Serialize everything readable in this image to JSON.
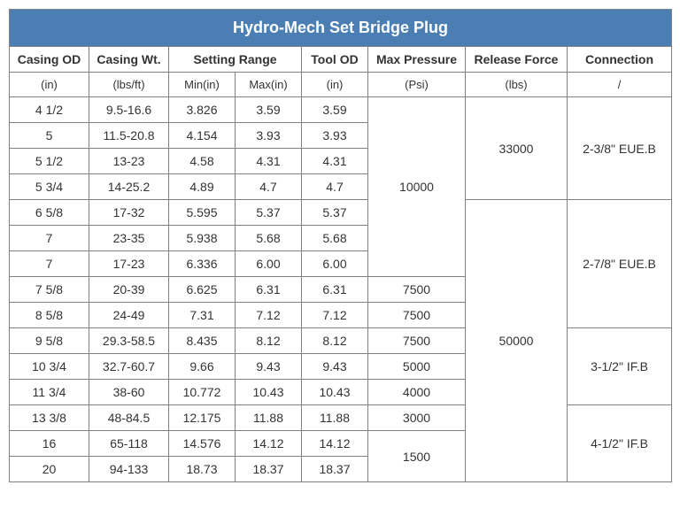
{
  "title": "Hydro-Mech Set Bridge Plug",
  "headers": {
    "casing_od": "Casing OD",
    "casing_wt": "Casing Wt.",
    "setting_range": "Setting Range",
    "tool_od": "Tool OD",
    "max_pressure": "Max Pressure",
    "release_force": "Release Force",
    "connection": "Connection"
  },
  "units": {
    "casing_od": "(in)",
    "casing_wt": "(lbs/ft)",
    "min": "Min(in)",
    "max": "Max(in)",
    "tool_od": "(in)",
    "max_pressure": "(Psi)",
    "release_force": "(lbs)",
    "connection": "/"
  },
  "rows": [
    {
      "od": "4 1/2",
      "wt": "9.5-16.6",
      "min": "3.826",
      "max": "3.59",
      "tool": "3.59"
    },
    {
      "od": "5",
      "wt": "11.5-20.8",
      "min": "4.154",
      "max": "3.93",
      "tool": "3.93"
    },
    {
      "od": "5 1/2",
      "wt": "13-23",
      "min": "4.58",
      "max": "4.31",
      "tool": "4.31"
    },
    {
      "od": "5 3/4",
      "wt": "14-25.2",
      "min": "4.89",
      "max": "4.7",
      "tool": "4.7"
    },
    {
      "od": "6 5/8",
      "wt": "17-32",
      "min": "5.595",
      "max": "5.37",
      "tool": "5.37"
    },
    {
      "od": "7",
      "wt": "23-35",
      "min": "5.938",
      "max": "5.68",
      "tool": "5.68"
    },
    {
      "od": "7",
      "wt": "17-23",
      "min": "6.336",
      "max": "6.00",
      "tool": "6.00"
    },
    {
      "od": "7 5/8",
      "wt": "20-39",
      "min": "6.625",
      "max": "6.31",
      "tool": "6.31"
    },
    {
      "od": "8 5/8",
      "wt": "24-49",
      "min": "7.31",
      "max": "7.12",
      "tool": "7.12"
    },
    {
      "od": "9 5/8",
      "wt": "29.3-58.5",
      "min": "8.435",
      "max": "8.12",
      "tool": "8.12"
    },
    {
      "od": "10 3/4",
      "wt": "32.7-60.7",
      "min": "9.66",
      "max": "9.43",
      "tool": "9.43"
    },
    {
      "od": "11 3/4",
      "wt": "38-60",
      "min": "10.772",
      "max": "10.43",
      "tool": "10.43"
    },
    {
      "od": "13 3/8",
      "wt": "48-84.5",
      "min": "12.175",
      "max": "11.88",
      "tool": "11.88"
    },
    {
      "od": "16",
      "wt": "65-118",
      "min": "14.576",
      "max": "14.12",
      "tool": "14.12"
    },
    {
      "od": "20",
      "wt": "94-133",
      "min": "18.73",
      "max": "18.37",
      "tool": "18.37"
    }
  ],
  "max_pressure": {
    "p10000": "10000",
    "p7500_a": "7500",
    "p7500_b": "7500",
    "p7500_c": "7500",
    "p5000": "5000",
    "p4000": "4000",
    "p3000": "3000",
    "p1500": "1500"
  },
  "release_force": {
    "r33000": "33000",
    "r50000": "50000"
  },
  "connections": {
    "c238": "2-3/8\" EUE.B",
    "c278": "2-7/8\" EUE.B",
    "c312": "3-1/2\" IF.B",
    "c412": "4-1/2\" IF.B"
  },
  "style": {
    "title_bg": "#4b7fb3",
    "title_color": "#ffffff",
    "border_color": "#808080",
    "text_color": "#333333",
    "font_family": "Arial",
    "title_fontsize": 18,
    "header_fontsize": 14,
    "cell_fontsize": 14
  }
}
